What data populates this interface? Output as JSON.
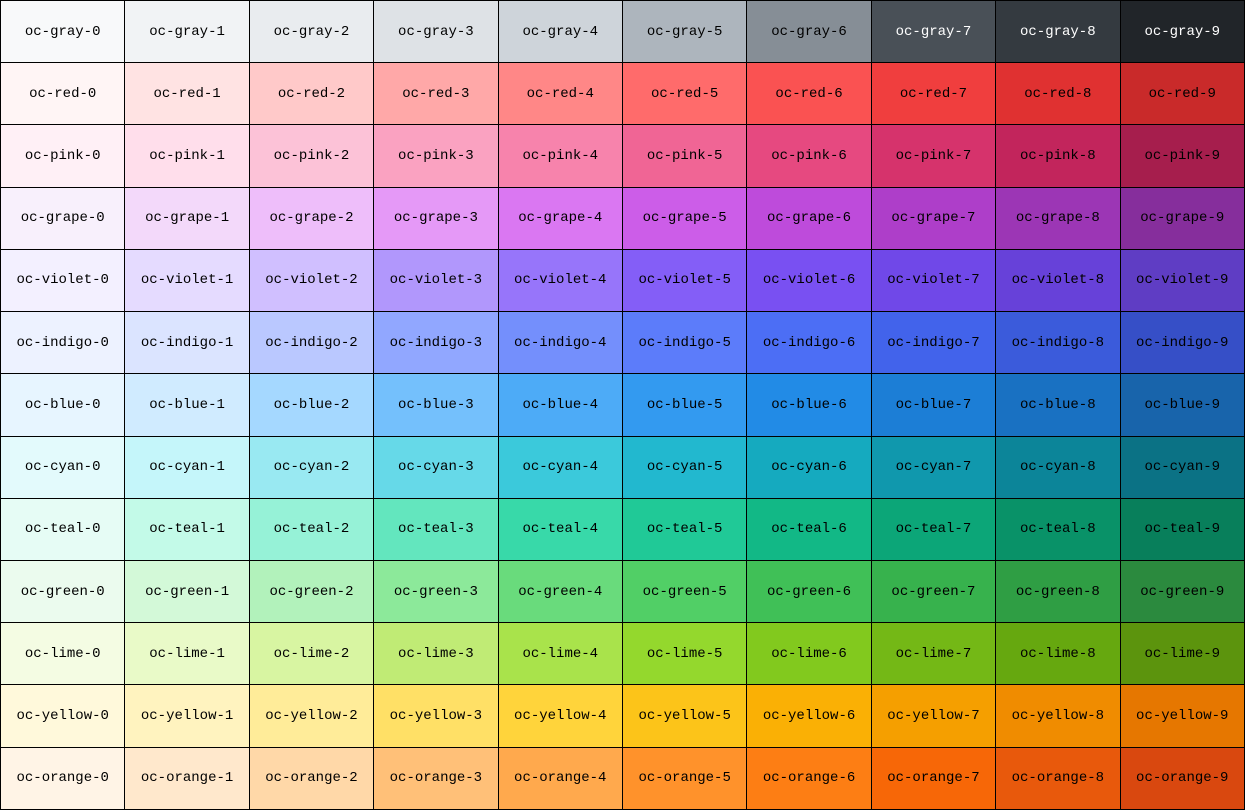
{
  "palette": [
    {
      "name": "gray",
      "cells": [
        {
          "label": "oc-gray-0",
          "color": "#f8f9fa"
        },
        {
          "label": "oc-gray-1",
          "color": "#f1f3f5"
        },
        {
          "label": "oc-gray-2",
          "color": "#e9ecef"
        },
        {
          "label": "oc-gray-3",
          "color": "#dee2e6"
        },
        {
          "label": "oc-gray-4",
          "color": "#ced4da"
        },
        {
          "label": "oc-gray-5",
          "color": "#adb5bd"
        },
        {
          "label": "oc-gray-6",
          "color": "#868e96"
        },
        {
          "label": "oc-gray-7",
          "color": "#495057",
          "light_text": true
        },
        {
          "label": "oc-gray-8",
          "color": "#343a40",
          "light_text": true
        },
        {
          "label": "oc-gray-9",
          "color": "#212529",
          "light_text": true
        }
      ]
    },
    {
      "name": "red",
      "cells": [
        {
          "label": "oc-red-0",
          "color": "#fff5f5"
        },
        {
          "label": "oc-red-1",
          "color": "#ffe3e3"
        },
        {
          "label": "oc-red-2",
          "color": "#ffc9c9"
        },
        {
          "label": "oc-red-3",
          "color": "#ffa8a8"
        },
        {
          "label": "oc-red-4",
          "color": "#ff8787"
        },
        {
          "label": "oc-red-5",
          "color": "#ff6b6b"
        },
        {
          "label": "oc-red-6",
          "color": "#fa5252"
        },
        {
          "label": "oc-red-7",
          "color": "#f03e3e"
        },
        {
          "label": "oc-red-8",
          "color": "#e03131"
        },
        {
          "label": "oc-red-9",
          "color": "#c92a2a"
        }
      ]
    },
    {
      "name": "pink",
      "cells": [
        {
          "label": "oc-pink-0",
          "color": "#fff0f6"
        },
        {
          "label": "oc-pink-1",
          "color": "#ffdeeb"
        },
        {
          "label": "oc-pink-2",
          "color": "#fcc2d7"
        },
        {
          "label": "oc-pink-3",
          "color": "#faa2c1"
        },
        {
          "label": "oc-pink-4",
          "color": "#f783ac"
        },
        {
          "label": "oc-pink-5",
          "color": "#f06595"
        },
        {
          "label": "oc-pink-6",
          "color": "#e64980"
        },
        {
          "label": "oc-pink-7",
          "color": "#d6336c"
        },
        {
          "label": "oc-pink-8",
          "color": "#c2255c"
        },
        {
          "label": "oc-pink-9",
          "color": "#a61e4d"
        }
      ]
    },
    {
      "name": "grape",
      "cells": [
        {
          "label": "oc-grape-0",
          "color": "#f8f0fc"
        },
        {
          "label": "oc-grape-1",
          "color": "#f3d9fa"
        },
        {
          "label": "oc-grape-2",
          "color": "#eebefa"
        },
        {
          "label": "oc-grape-3",
          "color": "#e599f7"
        },
        {
          "label": "oc-grape-4",
          "color": "#da77f2"
        },
        {
          "label": "oc-grape-5",
          "color": "#cc5de8"
        },
        {
          "label": "oc-grape-6",
          "color": "#be4bdb"
        },
        {
          "label": "oc-grape-7",
          "color": "#ae3ec9"
        },
        {
          "label": "oc-grape-8",
          "color": "#9c36b5"
        },
        {
          "label": "oc-grape-9",
          "color": "#862e9c"
        }
      ]
    },
    {
      "name": "violet",
      "cells": [
        {
          "label": "oc-violet-0",
          "color": "#f3f0ff"
        },
        {
          "label": "oc-violet-1",
          "color": "#e5dbff"
        },
        {
          "label": "oc-violet-2",
          "color": "#d0bfff"
        },
        {
          "label": "oc-violet-3",
          "color": "#b197fc"
        },
        {
          "label": "oc-violet-4",
          "color": "#9775fa"
        },
        {
          "label": "oc-violet-5",
          "color": "#845ef7"
        },
        {
          "label": "oc-violet-6",
          "color": "#7950f2"
        },
        {
          "label": "oc-violet-7",
          "color": "#7048e8"
        },
        {
          "label": "oc-violet-8",
          "color": "#6741d9"
        },
        {
          "label": "oc-violet-9",
          "color": "#5f3dc4"
        }
      ]
    },
    {
      "name": "indigo",
      "cells": [
        {
          "label": "oc-indigo-0",
          "color": "#edf2ff"
        },
        {
          "label": "oc-indigo-1",
          "color": "#dbe4ff"
        },
        {
          "label": "oc-indigo-2",
          "color": "#bac8ff"
        },
        {
          "label": "oc-indigo-3",
          "color": "#91a7ff"
        },
        {
          "label": "oc-indigo-4",
          "color": "#748ffc"
        },
        {
          "label": "oc-indigo-5",
          "color": "#5c7cfa"
        },
        {
          "label": "oc-indigo-6",
          "color": "#4c6ef5"
        },
        {
          "label": "oc-indigo-7",
          "color": "#4263eb"
        },
        {
          "label": "oc-indigo-8",
          "color": "#3b5bdb"
        },
        {
          "label": "oc-indigo-9",
          "color": "#364fc7"
        }
      ]
    },
    {
      "name": "blue",
      "cells": [
        {
          "label": "oc-blue-0",
          "color": "#e7f5ff"
        },
        {
          "label": "oc-blue-1",
          "color": "#d0ebff"
        },
        {
          "label": "oc-blue-2",
          "color": "#a5d8ff"
        },
        {
          "label": "oc-blue-3",
          "color": "#74c0fc"
        },
        {
          "label": "oc-blue-4",
          "color": "#4dabf7"
        },
        {
          "label": "oc-blue-5",
          "color": "#339af0"
        },
        {
          "label": "oc-blue-6",
          "color": "#228be6"
        },
        {
          "label": "oc-blue-7",
          "color": "#1c7ed6"
        },
        {
          "label": "oc-blue-8",
          "color": "#1971c2"
        },
        {
          "label": "oc-blue-9",
          "color": "#1864ab"
        }
      ]
    },
    {
      "name": "cyan",
      "cells": [
        {
          "label": "oc-cyan-0",
          "color": "#e3fafc"
        },
        {
          "label": "oc-cyan-1",
          "color": "#c5f6fa"
        },
        {
          "label": "oc-cyan-2",
          "color": "#99e9f2"
        },
        {
          "label": "oc-cyan-3",
          "color": "#66d9e8"
        },
        {
          "label": "oc-cyan-4",
          "color": "#3bc9db"
        },
        {
          "label": "oc-cyan-5",
          "color": "#22b8cf"
        },
        {
          "label": "oc-cyan-6",
          "color": "#15aabf"
        },
        {
          "label": "oc-cyan-7",
          "color": "#1098ad"
        },
        {
          "label": "oc-cyan-8",
          "color": "#0c8599"
        },
        {
          "label": "oc-cyan-9",
          "color": "#0b7285"
        }
      ]
    },
    {
      "name": "teal",
      "cells": [
        {
          "label": "oc-teal-0",
          "color": "#e6fcf5"
        },
        {
          "label": "oc-teal-1",
          "color": "#c3fae8"
        },
        {
          "label": "oc-teal-2",
          "color": "#96f2d7"
        },
        {
          "label": "oc-teal-3",
          "color": "#63e6be"
        },
        {
          "label": "oc-teal-4",
          "color": "#38d9a9"
        },
        {
          "label": "oc-teal-5",
          "color": "#20c997"
        },
        {
          "label": "oc-teal-6",
          "color": "#12b886"
        },
        {
          "label": "oc-teal-7",
          "color": "#0ca678"
        },
        {
          "label": "oc-teal-8",
          "color": "#099268"
        },
        {
          "label": "oc-teal-9",
          "color": "#087f5b"
        }
      ]
    },
    {
      "name": "green",
      "cells": [
        {
          "label": "oc-green-0",
          "color": "#ebfbee"
        },
        {
          "label": "oc-green-1",
          "color": "#d3f9d8"
        },
        {
          "label": "oc-green-2",
          "color": "#b2f2bb"
        },
        {
          "label": "oc-green-3",
          "color": "#8ce99a"
        },
        {
          "label": "oc-green-4",
          "color": "#69db7c"
        },
        {
          "label": "oc-green-5",
          "color": "#51cf66"
        },
        {
          "label": "oc-green-6",
          "color": "#40c057"
        },
        {
          "label": "oc-green-7",
          "color": "#37b24d"
        },
        {
          "label": "oc-green-8",
          "color": "#2f9e44"
        },
        {
          "label": "oc-green-9",
          "color": "#2b8a3e"
        }
      ]
    },
    {
      "name": "lime",
      "cells": [
        {
          "label": "oc-lime-0",
          "color": "#f4fce3"
        },
        {
          "label": "oc-lime-1",
          "color": "#e9fac8"
        },
        {
          "label": "oc-lime-2",
          "color": "#d8f5a2"
        },
        {
          "label": "oc-lime-3",
          "color": "#c0eb75"
        },
        {
          "label": "oc-lime-4",
          "color": "#a9e34b"
        },
        {
          "label": "oc-lime-5",
          "color": "#94d82d"
        },
        {
          "label": "oc-lime-6",
          "color": "#82c91e"
        },
        {
          "label": "oc-lime-7",
          "color": "#74b816"
        },
        {
          "label": "oc-lime-8",
          "color": "#66a80f"
        },
        {
          "label": "oc-lime-9",
          "color": "#5c940d"
        }
      ]
    },
    {
      "name": "yellow",
      "cells": [
        {
          "label": "oc-yellow-0",
          "color": "#fff9db"
        },
        {
          "label": "oc-yellow-1",
          "color": "#fff3bf"
        },
        {
          "label": "oc-yellow-2",
          "color": "#ffec99"
        },
        {
          "label": "oc-yellow-3",
          "color": "#ffe066"
        },
        {
          "label": "oc-yellow-4",
          "color": "#ffd43b"
        },
        {
          "label": "oc-yellow-5",
          "color": "#fcc419"
        },
        {
          "label": "oc-yellow-6",
          "color": "#fab005"
        },
        {
          "label": "oc-yellow-7",
          "color": "#f59f00"
        },
        {
          "label": "oc-yellow-8",
          "color": "#f08c00"
        },
        {
          "label": "oc-yellow-9",
          "color": "#e67700"
        }
      ]
    },
    {
      "name": "orange",
      "cells": [
        {
          "label": "oc-orange-0",
          "color": "#fff4e6"
        },
        {
          "label": "oc-orange-1",
          "color": "#ffe8cc"
        },
        {
          "label": "oc-orange-2",
          "color": "#ffd8a8"
        },
        {
          "label": "oc-orange-3",
          "color": "#ffc078"
        },
        {
          "label": "oc-orange-4",
          "color": "#ffa94d"
        },
        {
          "label": "oc-orange-5",
          "color": "#ff922b"
        },
        {
          "label": "oc-orange-6",
          "color": "#fd7e14"
        },
        {
          "label": "oc-orange-7",
          "color": "#f76707"
        },
        {
          "label": "oc-orange-8",
          "color": "#e8590c"
        },
        {
          "label": "oc-orange-9",
          "color": "#d9480f"
        }
      ]
    }
  ]
}
